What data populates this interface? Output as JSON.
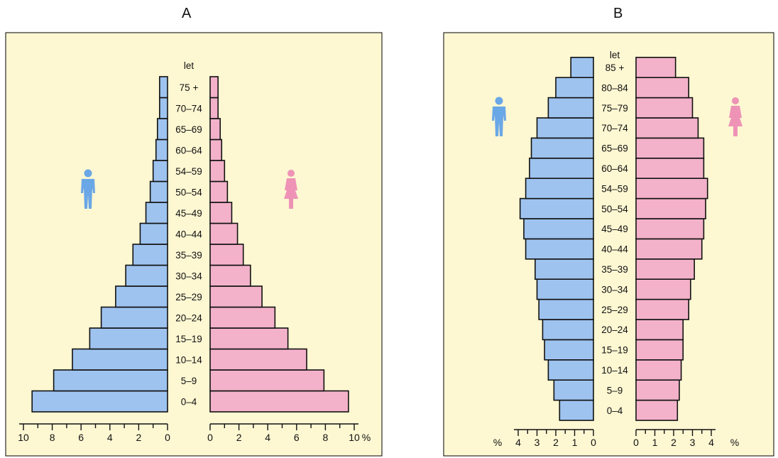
{
  "colors": {
    "background": "#fdf7d2",
    "male": "#9ec3ef",
    "female": "#f3b2c9",
    "male_icon": "#6aa7e6",
    "female_icon": "#ee93b6",
    "outline": "#111111"
  },
  "chart_data": [
    {
      "panel_label": "A",
      "type": "bar",
      "orientation": "horizontal",
      "age_header": "let",
      "categories": [
        "0–4",
        "5–9",
        "10–14",
        "15–19",
        "20–24",
        "25–29",
        "30–34",
        "35–39",
        "40–44",
        "45–49",
        "50–54",
        "54–59",
        "60–64",
        "65–69",
        "70–74",
        "75 +"
      ],
      "series": [
        {
          "side": "left",
          "icon": "male-figure-icon",
          "values": [
            9.4,
            7.9,
            6.6,
            5.4,
            4.6,
            3.6,
            2.9,
            2.4,
            1.9,
            1.5,
            1.2,
            1.0,
            0.8,
            0.7,
            0.55,
            0.55
          ]
        },
        {
          "side": "right",
          "icon": "female-figure-icon",
          "values": [
            9.6,
            7.9,
            6.7,
            5.4,
            4.5,
            3.6,
            2.8,
            2.3,
            1.9,
            1.5,
            1.2,
            1.0,
            0.8,
            0.7,
            0.55,
            0.55
          ]
        }
      ],
      "left_axis": {
        "ticks": [
          10,
          8,
          6,
          4,
          2,
          0
        ],
        "unit": ""
      },
      "right_axis": {
        "ticks": [
          0,
          2,
          4,
          6,
          8,
          10
        ],
        "unit": "%"
      },
      "xlim": [
        0,
        10
      ]
    },
    {
      "panel_label": "B",
      "type": "bar",
      "orientation": "horizontal",
      "age_header": "let",
      "categories": [
        "0–4",
        "5–9",
        "10–14",
        "15–19",
        "20–24",
        "25–29",
        "30–34",
        "35–39",
        "40–44",
        "45–49",
        "50–54",
        "54–59",
        "60–64",
        "65–69",
        "70–74",
        "75–79",
        "80–84",
        "85 +"
      ],
      "series": [
        {
          "side": "left",
          "icon": "male-figure-icon",
          "values": [
            1.8,
            2.1,
            2.4,
            2.6,
            2.7,
            2.9,
            3.0,
            3.1,
            3.6,
            3.7,
            3.9,
            3.6,
            3.4,
            3.3,
            3.0,
            2.4,
            2.0,
            1.2
          ]
        },
        {
          "side": "right",
          "icon": "female-figure-icon",
          "values": [
            2.2,
            2.3,
            2.4,
            2.5,
            2.5,
            2.8,
            2.9,
            3.1,
            3.5,
            3.6,
            3.7,
            3.8,
            3.6,
            3.6,
            3.3,
            3.0,
            2.8,
            2.1
          ]
        }
      ],
      "left_axis": {
        "ticks": [
          4,
          3,
          2,
          1,
          0
        ],
        "unit": "%"
      },
      "right_axis": {
        "ticks": [
          0,
          1,
          2,
          3,
          4
        ],
        "unit": "%"
      },
      "xlim": [
        0,
        5
      ]
    }
  ]
}
